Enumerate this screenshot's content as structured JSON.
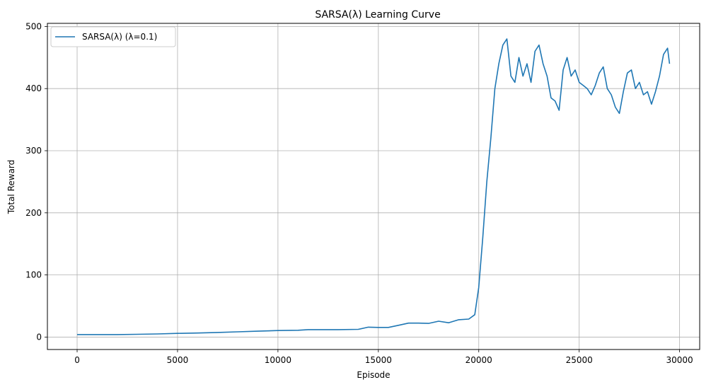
{
  "chart_data": {
    "type": "line",
    "title": "SARSA(λ) Learning Curve",
    "xlabel": "Episode",
    "ylabel": "Total Reward",
    "xlim": [
      -1480,
      31000
    ],
    "ylim": [
      -20,
      505
    ],
    "xticks": [
      0,
      5000,
      10000,
      15000,
      20000,
      25000,
      30000
    ],
    "yticks": [
      0,
      100,
      200,
      300,
      400,
      500
    ],
    "grid": true,
    "legend_position": "top-left",
    "series": [
      {
        "name": "SARSA(λ) (λ=0.1)",
        "color": "#1f77b4",
        "points": [
          [
            0,
            4
          ],
          [
            1000,
            4
          ],
          [
            2000,
            4
          ],
          [
            3000,
            4.5
          ],
          [
            4000,
            5
          ],
          [
            5000,
            6
          ],
          [
            6000,
            6.5
          ],
          [
            7000,
            7.5
          ],
          [
            8000,
            8.5
          ],
          [
            9000,
            9.5
          ],
          [
            10000,
            10.5
          ],
          [
            11000,
            11
          ],
          [
            11500,
            12
          ],
          [
            12000,
            12
          ],
          [
            13000,
            12
          ],
          [
            14000,
            12.5
          ],
          [
            14500,
            16
          ],
          [
            15000,
            15.5
          ],
          [
            15500,
            15.5
          ],
          [
            16000,
            19
          ],
          [
            16500,
            22.5
          ],
          [
            17000,
            22.5
          ],
          [
            17500,
            22
          ],
          [
            18000,
            25.5
          ],
          [
            18500,
            23
          ],
          [
            19000,
            28
          ],
          [
            19500,
            29
          ],
          [
            19800,
            36
          ],
          [
            20000,
            80
          ],
          [
            20200,
            160
          ],
          [
            20400,
            250
          ],
          [
            20600,
            320
          ],
          [
            20800,
            400
          ],
          [
            21000,
            440
          ],
          [
            21200,
            470
          ],
          [
            21400,
            480
          ],
          [
            21600,
            420
          ],
          [
            21800,
            410
          ],
          [
            22000,
            450
          ],
          [
            22200,
            420
          ],
          [
            22400,
            440
          ],
          [
            22600,
            410
          ],
          [
            22800,
            460
          ],
          [
            23000,
            470
          ],
          [
            23200,
            440
          ],
          [
            23400,
            420
          ],
          [
            23600,
            385
          ],
          [
            23800,
            380
          ],
          [
            24000,
            365
          ],
          [
            24200,
            430
          ],
          [
            24400,
            450
          ],
          [
            24600,
            420
          ],
          [
            24800,
            430
          ],
          [
            25000,
            410
          ],
          [
            25200,
            405
          ],
          [
            25400,
            400
          ],
          [
            25600,
            390
          ],
          [
            25800,
            405
          ],
          [
            26000,
            425
          ],
          [
            26200,
            435
          ],
          [
            26400,
            400
          ],
          [
            26600,
            390
          ],
          [
            26800,
            370
          ],
          [
            27000,
            360
          ],
          [
            27200,
            395
          ],
          [
            27400,
            425
          ],
          [
            27600,
            430
          ],
          [
            27800,
            400
          ],
          [
            28000,
            410
          ],
          [
            28200,
            390
          ],
          [
            28400,
            395
          ],
          [
            28600,
            375
          ],
          [
            28800,
            395
          ],
          [
            29000,
            420
          ],
          [
            29200,
            455
          ],
          [
            29400,
            465
          ],
          [
            29500,
            440
          ]
        ]
      }
    ]
  }
}
